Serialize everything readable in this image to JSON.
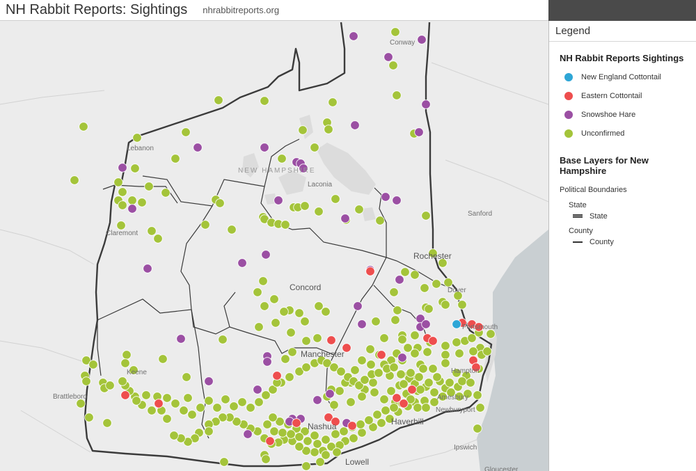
{
  "header": {
    "title": "NH Rabbit Reports: Sightings",
    "link": "nhrabbitreports.org"
  },
  "legend": {
    "title": "Legend",
    "layer_title": "NH Rabbit Reports Sightings",
    "categories": [
      {
        "label": "New England Cottontail",
        "color": "#2ea6d6"
      },
      {
        "label": "Eastern Cottontail",
        "color": "#ee4e4e"
      },
      {
        "label": "Snowshoe Hare",
        "color": "#9b4fa3"
      },
      {
        "label": "Unconfirmed",
        "color": "#a4c43a"
      }
    ],
    "base_title": "Base Layers for New Hampshire",
    "group": "Political Boundaries",
    "state_heading": "State",
    "state_label": "State",
    "county_heading": "County",
    "county_label": "County"
  },
  "map": {
    "state_label": "NEW HAMPSHIRE",
    "places": [
      {
        "name": "Conway",
        "big": false
      },
      {
        "name": "Lebanon",
        "big": false
      },
      {
        "name": "Laconia",
        "big": false
      },
      {
        "name": "Claremont",
        "big": false
      },
      {
        "name": "Sanford",
        "big": false
      },
      {
        "name": "Rochester",
        "big": true
      },
      {
        "name": "Concord",
        "big": true
      },
      {
        "name": "Dover",
        "big": false
      },
      {
        "name": "Portsmouth",
        "big": false
      },
      {
        "name": "Manchester",
        "big": true
      },
      {
        "name": "Keene",
        "big": false
      },
      {
        "name": "Hampton",
        "big": false
      },
      {
        "name": "Brattleboro",
        "big": false
      },
      {
        "name": "Amesbury",
        "big": false
      },
      {
        "name": "Newburyport",
        "big": false
      },
      {
        "name": "Nashua",
        "big": true
      },
      {
        "name": "Haverhill",
        "big": true
      },
      {
        "name": "Ipswich",
        "big": false
      },
      {
        "name": "Lowell",
        "big": true
      },
      {
        "name": "Gloucester",
        "big": false
      }
    ]
  }
}
